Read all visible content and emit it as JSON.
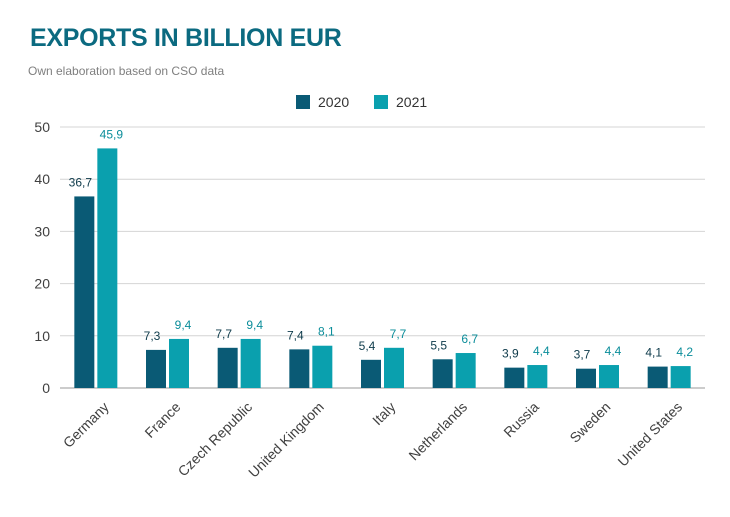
{
  "chart_data": {
    "type": "bar",
    "title": "EXPORTS IN BILLION EUR",
    "subtitle": "Own elaboration based on CSO data",
    "xlabel": "",
    "ylabel": "",
    "ylim": [
      0,
      50
    ],
    "yticks": [
      0,
      10,
      20,
      30,
      40,
      50
    ],
    "grid": true,
    "legend_position": "top-center",
    "categories": [
      "Germany",
      "France",
      "Czech Republic",
      "United Kingdom",
      "Italy",
      "Netherlands",
      "Russia",
      "Sweden",
      "United States"
    ],
    "series": [
      {
        "name": "2020",
        "color": "#0a5a75",
        "values": [
          36.7,
          7.3,
          7.7,
          7.4,
          5.4,
          5.5,
          3.9,
          3.7,
          4.1
        ],
        "labels": [
          "36,7",
          "7,3",
          "7,7",
          "7,4",
          "5,4",
          "5,5",
          "3,9",
          "3,7",
          "4,1"
        ]
      },
      {
        "name": "2021",
        "color": "#0aa0ae",
        "values": [
          45.9,
          9.4,
          9.4,
          8.1,
          7.7,
          6.7,
          4.4,
          4.4,
          4.2
        ],
        "labels": [
          "45,9",
          "9,4",
          "9,4",
          "8,1",
          "7,7",
          "6,7",
          "4,4",
          "4,4",
          "4,2"
        ]
      }
    ],
    "colors": {
      "title": "#0b6a80",
      "grid": "#d4d4d4",
      "axis_text": "#404040"
    }
  }
}
